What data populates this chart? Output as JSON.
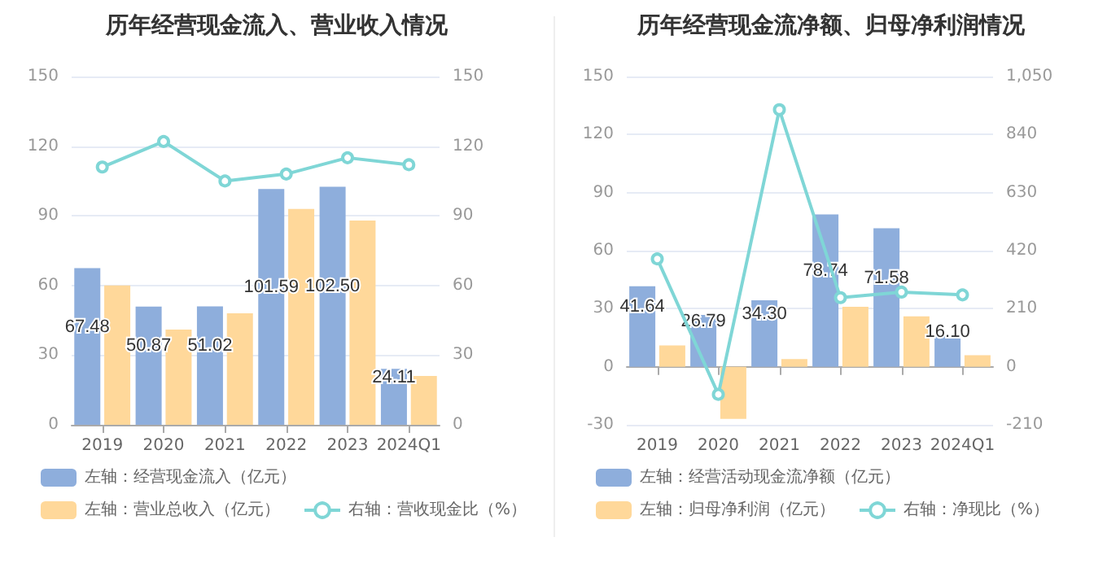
{
  "chart_data": [
    {
      "type": "bar",
      "title": "历年经营现金流入、营业收入情况",
      "categories": [
        "2019",
        "2020",
        "2021",
        "2022",
        "2023",
        "2024Q1"
      ],
      "series": [
        {
          "name": "左轴：经营现金流入（亿元）",
          "color": "#8eaedc",
          "values": [
            67.48,
            50.87,
            51.02,
            101.59,
            102.5,
            24.11
          ],
          "value_labels": [
            "67.48",
            "50.87",
            "51.02",
            "101.59",
            "102.50",
            "24.11"
          ]
        },
        {
          "name": "左轴：营业总收入（亿元）",
          "color": "#ffd89a",
          "values": [
            60,
            41,
            48,
            93,
            88,
            21
          ]
        },
        {
          "name": "右轴：营收现金比（%）",
          "type": "line",
          "axis": "y2",
          "color": "#7fd6d6",
          "values": [
            111,
            122,
            105,
            108,
            115,
            112
          ]
        }
      ],
      "ylim": [
        0,
        150
      ],
      "yticks": [
        0,
        30,
        60,
        90,
        120,
        150
      ],
      "y2lim": [
        0,
        150
      ],
      "y2ticks": [
        0,
        30,
        60,
        90,
        120,
        150
      ],
      "grid": "y",
      "legend": "bottom",
      "marker": "circle",
      "line_style": "solid"
    },
    {
      "type": "bar",
      "title": "历年经营现金流净额、归母净利润情况",
      "categories": [
        "2019",
        "2020",
        "2021",
        "2022",
        "2023",
        "2024Q1"
      ],
      "series": [
        {
          "name": "左轴：经营活动现金流净额（亿元）",
          "color": "#8eaedc",
          "values": [
            41.64,
            26.79,
            34.3,
            78.74,
            71.58,
            16.1
          ],
          "value_labels": [
            "41.64",
            "26.79",
            "34.30",
            "78.74",
            "71.58",
            "16.10"
          ]
        },
        {
          "name": "左轴：归母净利润（亿元）",
          "color": "#ffd89a",
          "values": [
            11,
            -27,
            4,
            31,
            26,
            6
          ]
        },
        {
          "name": "右轴：净现比（%）",
          "type": "line",
          "axis": "y2",
          "color": "#7fd6d6",
          "values": [
            390,
            -100,
            930,
            250,
            270,
            260
          ]
        }
      ],
      "ylim": [
        -30,
        150
      ],
      "yticks": [
        -30,
        0,
        30,
        60,
        90,
        120,
        150
      ],
      "y2lim": [
        -210,
        1050
      ],
      "y2ticks": [
        {
          "value": -210,
          "label": "-210"
        },
        {
          "value": 0,
          "label": "0"
        },
        {
          "value": 210,
          "label": "210"
        },
        {
          "value": 420,
          "label": "420"
        },
        {
          "value": 630,
          "label": "630"
        },
        {
          "value": 840,
          "label": "840"
        },
        {
          "value": 1050,
          "label": "1,050"
        }
      ],
      "grid": "y",
      "legend": "bottom",
      "marker": "circle",
      "line_style": "solid"
    }
  ]
}
